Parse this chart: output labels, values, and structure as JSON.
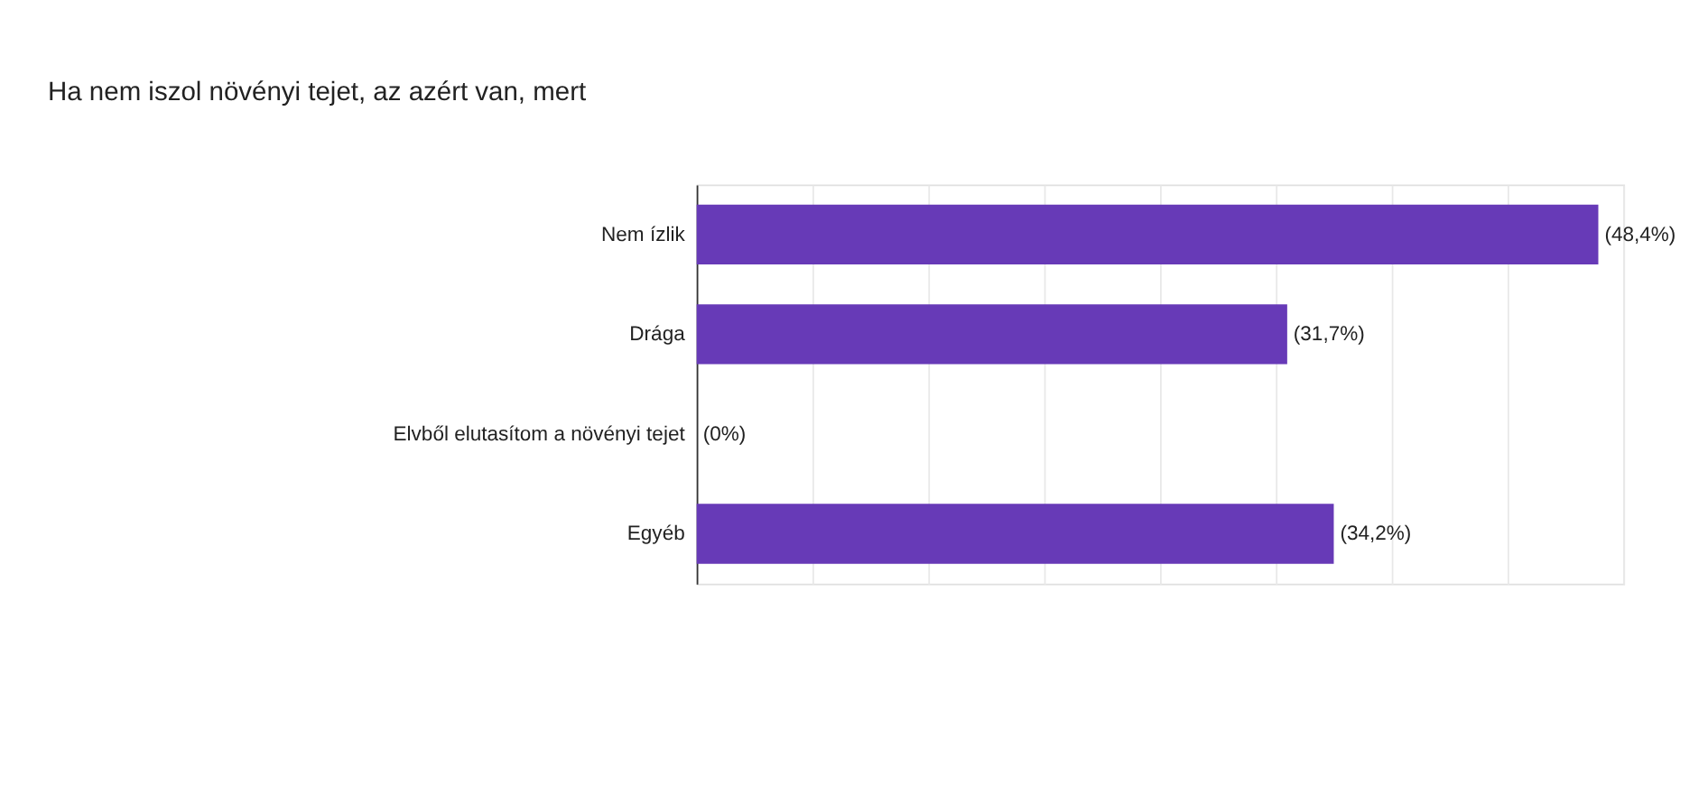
{
  "chart_data": {
    "type": "bar",
    "orientation": "horizontal",
    "title": "Ha nem iszol növényi tejet, az azért van, mert",
    "categories": [
      "Nem ízlik",
      "Drága",
      "Elvből elutasítom a növényi tejet",
      "Egyéb"
    ],
    "values": [
      48.4,
      31.7,
      0,
      34.2
    ],
    "color": "#673ab7",
    "value_labels": [
      "(48,4%)",
      "(31,7%)",
      "(0%)",
      "(34,2%)"
    ],
    "xlim": [
      0,
      49.75
    ],
    "xticks": [
      {
        "value": 0,
        "label": null
      },
      {
        "value": 6.22,
        "label": null
      },
      {
        "value": 12.44,
        "label": null
      },
      {
        "value": 18.66,
        "label": null
      },
      {
        "value": 24.88,
        "label": null
      },
      {
        "value": 31.1,
        "label": null
      },
      {
        "value": 37.32,
        "label": null
      },
      {
        "value": 43.54,
        "label": null
      },
      {
        "value": 49.75,
        "label": null
      }
    ],
    "grid": "x",
    "tick_labels": "y"
  }
}
